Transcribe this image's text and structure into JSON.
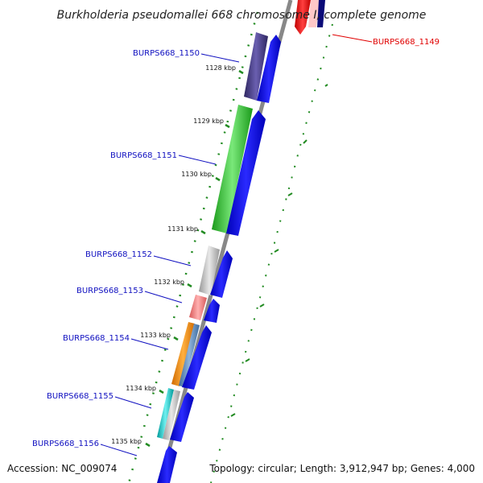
{
  "title": "Burkholderia pseudomallei 668 chromosome I, complete genome",
  "footer": {
    "accession": "Accession: NC_009074",
    "summary": "Topology: circular; Length: 3,912,947 bp; Genes: 4,000"
  },
  "scale": {
    "ticks": [
      "1128 kbp",
      "1129 kbp",
      "1130 kbp",
      "1131 kbp",
      "1132 kbp",
      "1133 kbp",
      "1134 kbp",
      "1135 kbp"
    ]
  },
  "genes": [
    {
      "label": "BURPS668_1149",
      "color": "#ff0000",
      "highlight": true
    },
    {
      "label": "BURPS668_1150",
      "color": "#4a3f8c"
    },
    {
      "label": "BURPS668_1151",
      "color": "#33cc33"
    },
    {
      "label": "BURPS668_1152",
      "color": "#bbbbbb"
    },
    {
      "label": "BURPS668_1153",
      "color": "#f08080"
    },
    {
      "label": "BURPS668_1154",
      "color": "#ff8c00"
    },
    {
      "label": "BURPS668_1155",
      "color": "#00bcbc"
    },
    {
      "label": "BURPS668_1156",
      "color": "#0000ff"
    }
  ],
  "colors": {
    "strand_arrow": "#0000ff",
    "backbone": "#888888",
    "tick": "#228b22",
    "label": "#1010c0",
    "highlight_label": "#e00000"
  }
}
